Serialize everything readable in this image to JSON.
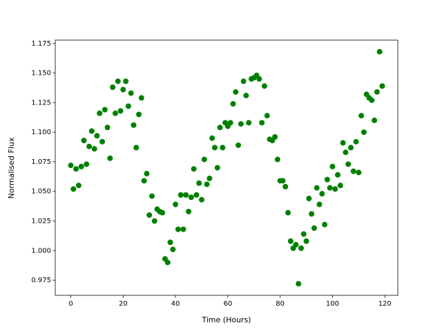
{
  "chart_data": {
    "type": "scatter",
    "xlabel": "Time (Hours)",
    "ylabel": "Normalised Flux",
    "x": [
      0,
      1,
      2,
      3,
      4,
      5,
      6,
      7,
      8,
      9,
      10,
      11,
      12,
      13,
      14,
      15,
      16,
      17,
      18,
      19,
      20,
      21,
      22,
      23,
      24,
      25,
      26,
      27,
      28,
      29,
      30,
      31,
      32,
      33,
      34,
      35,
      36,
      37,
      38,
      39,
      40,
      41,
      42,
      43,
      44,
      45,
      46,
      47,
      48,
      49,
      50,
      51,
      52,
      53,
      54,
      55,
      56,
      57,
      58,
      59,
      60,
      61,
      62,
      63,
      64,
      65,
      66,
      67,
      68,
      69,
      70,
      71,
      72,
      73,
      74,
      75,
      76,
      77,
      78,
      79,
      80,
      81,
      82,
      83,
      84,
      85,
      86,
      87,
      88,
      89,
      90,
      91,
      92,
      93,
      94,
      95,
      96,
      97,
      98,
      99,
      100,
      101,
      102,
      103,
      104,
      105,
      106,
      107,
      108,
      109,
      110,
      111,
      112,
      113,
      114,
      115,
      116,
      117,
      118,
      119
    ],
    "values": [
      1.072,
      1.052,
      1.069,
      1.055,
      1.071,
      1.093,
      1.073,
      1.088,
      1.101,
      1.086,
      1.097,
      1.116,
      1.092,
      1.119,
      1.104,
      1.078,
      1.138,
      1.116,
      1.143,
      1.118,
      1.136,
      1.143,
      1.122,
      1.133,
      1.106,
      1.087,
      1.115,
      1.129,
      1.059,
      1.065,
      1.03,
      1.046,
      1.025,
      1.035,
      1.033,
      1.032,
      0.993,
      0.99,
      1.007,
      1.001,
      1.039,
      1.018,
      1.047,
      1.018,
      1.047,
      1.033,
      1.045,
      1.069,
      1.047,
      1.057,
      1.043,
      1.077,
      1.056,
      1.061,
      1.095,
      1.087,
      1.07,
      1.104,
      1.087,
      1.108,
      1.105,
      1.108,
      1.124,
      1.134,
      1.089,
      1.107,
      1.143,
      1.131,
      1.108,
      1.145,
      1.146,
      1.148,
      1.145,
      1.108,
      1.139,
      1.114,
      1.094,
      1.093,
      1.096,
      1.077,
      1.059,
      1.059,
      1.054,
      1.032,
      1.008,
      1.002,
      1.005,
      0.972,
      1.002,
      1.014,
      1.008,
      1.044,
      1.031,
      1.019,
      1.053,
      1.039,
      1.048,
      1.022,
      1.06,
      1.053,
      1.071,
      1.052,
      1.064,
      1.055,
      1.091,
      1.083,
      1.073,
      1.087,
      1.067,
      1.092,
      1.066,
      1.114,
      1.1,
      1.132,
      1.129,
      1.127,
      1.11,
      1.134,
      1.168,
      1.139
    ],
    "color": "#008000",
    "xlim": [
      -5.95,
      124.95
    ],
    "xticks": [
      0,
      20,
      40,
      60,
      80,
      100,
      120
    ],
    "ylim": [
      0.9622,
      1.1778
    ],
    "yticks": [
      0.975,
      {
        "value": 1,
        "label": "1.000"
      },
      1.025,
      {
        "value": 1.05,
        "label": "1.050"
      },
      1.075,
      {
        "value": 1.1,
        "label": "1.100"
      },
      1.125,
      {
        "value": 1.15,
        "label": "1.150"
      },
      1.175
    ],
    "grid": false
  }
}
